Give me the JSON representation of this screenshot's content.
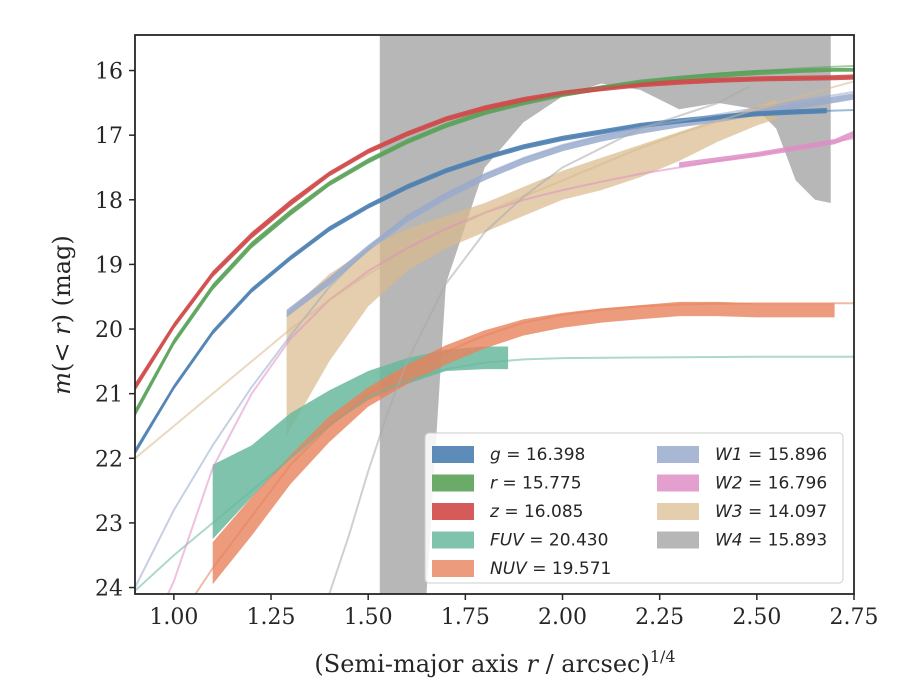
{
  "chart_data": {
    "type": "line",
    "xlabel_main": "(Semi-major axis ",
    "xlabel_var": "r",
    "xlabel_unit": " / arcsec)",
    "xlabel_exp": "1/4",
    "ylabel_m": "m",
    "ylabel_open": "(",
    "ylabel_cond": "< r",
    "ylabel_close": ")",
    "ylabel_unit": " (mag)",
    "xlim": [
      0.9,
      2.75
    ],
    "ylim": [
      24.1,
      15.45
    ],
    "xticks": [
      "1.00",
      "1.25",
      "1.50",
      "1.75",
      "2.00",
      "2.25",
      "2.50",
      "2.75"
    ],
    "yticks": [
      "16",
      "17",
      "18",
      "19",
      "20",
      "21",
      "22",
      "23",
      "24"
    ],
    "grid": false,
    "legend_position": "lower-right",
    "series": [
      {
        "name": "g",
        "value": "16.398",
        "color": "#4c7fb0",
        "fill_opacity": 0.9,
        "model": [
          [
            0.9,
            21.9
          ],
          [
            1.0,
            20.9
          ],
          [
            1.1,
            20.05
          ],
          [
            1.2,
            19.4
          ],
          [
            1.3,
            18.9
          ],
          [
            1.4,
            18.45
          ],
          [
            1.5,
            18.1
          ],
          [
            1.6,
            17.8
          ],
          [
            1.7,
            17.55
          ],
          [
            1.8,
            17.35
          ],
          [
            1.9,
            17.18
          ],
          [
            2.0,
            17.05
          ],
          [
            2.1,
            16.95
          ],
          [
            2.2,
            16.85
          ],
          [
            2.3,
            16.78
          ],
          [
            2.4,
            16.72
          ],
          [
            2.5,
            16.67
          ],
          [
            2.6,
            16.64
          ],
          [
            2.7,
            16.62
          ],
          [
            2.75,
            16.61
          ]
        ],
        "band_x": [
          0.9,
          1.0,
          1.1,
          1.2,
          1.3,
          1.4,
          1.5,
          1.6,
          1.7,
          1.8,
          1.9,
          2.0,
          2.1,
          2.2,
          2.3,
          2.4,
          2.5,
          2.6,
          2.68
        ],
        "band_upper": [
          21.85,
          20.86,
          20.01,
          19.36,
          18.86,
          18.41,
          18.06,
          17.76,
          17.51,
          17.31,
          17.14,
          17.01,
          16.91,
          16.81,
          16.74,
          16.68,
          16.63,
          16.6,
          16.58
        ],
        "band_lower": [
          21.95,
          20.94,
          20.09,
          19.44,
          18.94,
          18.49,
          18.14,
          17.84,
          17.59,
          17.39,
          17.22,
          17.09,
          16.99,
          16.89,
          16.82,
          16.76,
          16.71,
          16.68,
          16.66
        ]
      },
      {
        "name": "r",
        "value": "15.775",
        "color": "#5aa25a",
        "fill_opacity": 0.9,
        "model": [
          [
            0.9,
            21.3
          ],
          [
            1.0,
            20.2
          ],
          [
            1.1,
            19.35
          ],
          [
            1.2,
            18.7
          ],
          [
            1.3,
            18.2
          ],
          [
            1.4,
            17.75
          ],
          [
            1.5,
            17.4
          ],
          [
            1.6,
            17.1
          ],
          [
            1.7,
            16.85
          ],
          [
            1.8,
            16.65
          ],
          [
            1.9,
            16.5
          ],
          [
            2.0,
            16.37
          ],
          [
            2.1,
            16.27
          ],
          [
            2.2,
            16.18
          ],
          [
            2.3,
            16.11
          ],
          [
            2.4,
            16.05
          ],
          [
            2.5,
            16.01
          ],
          [
            2.6,
            15.97
          ],
          [
            2.7,
            15.94
          ],
          [
            2.75,
            15.93
          ]
        ],
        "band_x": [
          0.9,
          1.0,
          1.1,
          1.2,
          1.3,
          1.4,
          1.5,
          1.6,
          1.7,
          1.8,
          1.9,
          2.0,
          2.1,
          2.2,
          2.3,
          2.4,
          2.5,
          2.6,
          2.7,
          2.75
        ],
        "band_upper": [
          21.24,
          20.15,
          19.3,
          18.65,
          18.15,
          17.71,
          17.36,
          17.06,
          16.81,
          16.61,
          16.46,
          16.33,
          16.23,
          16.14,
          16.08,
          16.03,
          15.99,
          15.97,
          15.96,
          15.96
        ],
        "band_lower": [
          21.36,
          20.25,
          19.4,
          18.75,
          18.25,
          17.79,
          17.44,
          17.14,
          16.89,
          16.69,
          16.54,
          16.41,
          16.31,
          16.22,
          16.16,
          16.11,
          16.07,
          16.04,
          16.02,
          16.02
        ]
      },
      {
        "name": "z",
        "value": "16.085",
        "color": "#d04848",
        "fill_opacity": 0.9,
        "model": [
          [
            0.9,
            20.9
          ],
          [
            1.0,
            19.95
          ],
          [
            1.1,
            19.15
          ],
          [
            1.2,
            18.55
          ],
          [
            1.3,
            18.05
          ],
          [
            1.4,
            17.6
          ],
          [
            1.5,
            17.25
          ],
          [
            1.6,
            16.98
          ],
          [
            1.7,
            16.75
          ],
          [
            1.8,
            16.58
          ],
          [
            1.9,
            16.45
          ],
          [
            2.0,
            16.35
          ],
          [
            2.1,
            16.28
          ],
          [
            2.2,
            16.22
          ],
          [
            2.3,
            16.18
          ],
          [
            2.4,
            16.15
          ],
          [
            2.5,
            16.13
          ],
          [
            2.6,
            16.12
          ],
          [
            2.7,
            16.11
          ],
          [
            2.75,
            16.1
          ]
        ],
        "band_x": [
          0.9,
          1.0,
          1.1,
          1.2,
          1.3,
          1.4,
          1.5,
          1.6,
          1.7,
          1.8,
          1.9,
          2.0,
          2.1,
          2.2,
          2.3,
          2.4,
          2.5,
          2.6,
          2.7,
          2.75
        ],
        "band_upper": [
          20.84,
          19.9,
          19.1,
          18.5,
          18.0,
          17.56,
          17.21,
          16.94,
          16.71,
          16.54,
          16.41,
          16.31,
          16.24,
          16.18,
          16.14,
          16.11,
          16.09,
          16.08,
          16.07,
          16.06
        ],
        "band_lower": [
          20.96,
          20.0,
          19.2,
          18.6,
          18.1,
          17.64,
          17.29,
          17.02,
          16.79,
          16.62,
          16.49,
          16.39,
          16.32,
          16.26,
          16.22,
          16.19,
          16.17,
          16.16,
          16.15,
          16.14
        ]
      },
      {
        "name": "FUV",
        "value": "20.430",
        "color": "#6ab89e",
        "fill_opacity": 0.85,
        "model": [
          [
            0.9,
            24.05
          ],
          [
            1.0,
            23.5
          ],
          [
            1.1,
            23.0
          ],
          [
            1.2,
            22.5
          ],
          [
            1.3,
            22.0
          ],
          [
            1.4,
            21.5
          ],
          [
            1.5,
            21.05
          ],
          [
            1.6,
            20.8
          ],
          [
            1.7,
            20.62
          ],
          [
            1.8,
            20.52
          ],
          [
            1.9,
            20.47
          ],
          [
            2.0,
            20.45
          ],
          [
            2.2,
            20.44
          ],
          [
            2.5,
            20.43
          ],
          [
            2.75,
            20.43
          ]
        ],
        "band_x": [
          1.1,
          1.2,
          1.3,
          1.4,
          1.5,
          1.6,
          1.7,
          1.8,
          1.86
        ],
        "band_upper": [
          22.1,
          21.8,
          21.3,
          20.95,
          20.65,
          20.45,
          20.32,
          20.27,
          20.27
        ],
        "band_lower": [
          23.25,
          22.6,
          22.0,
          21.5,
          21.1,
          20.85,
          20.65,
          20.62,
          20.62
        ]
      },
      {
        "name": "NUV",
        "value": "19.571",
        "color": "#e8825c",
        "fill_opacity": 0.8,
        "model": [
          [
            0.9,
            25.5
          ],
          [
            1.0,
            24.6
          ],
          [
            1.1,
            23.7
          ],
          [
            1.2,
            22.9
          ],
          [
            1.3,
            22.1
          ],
          [
            1.4,
            21.5
          ],
          [
            1.5,
            21.0
          ],
          [
            1.6,
            20.65
          ],
          [
            1.7,
            20.35
          ],
          [
            1.8,
            20.1
          ],
          [
            1.9,
            19.9
          ],
          [
            2.0,
            19.78
          ],
          [
            2.1,
            19.7
          ],
          [
            2.2,
            19.65
          ],
          [
            2.3,
            19.62
          ],
          [
            2.4,
            19.61
          ],
          [
            2.5,
            19.6
          ],
          [
            2.75,
            19.6
          ]
        ],
        "band_x": [
          1.1,
          1.2,
          1.3,
          1.4,
          1.5,
          1.6,
          1.7,
          1.8,
          1.9,
          2.0,
          2.1,
          2.2,
          2.3,
          2.4,
          2.5,
          2.6,
          2.7
        ],
        "band_upper": [
          23.3,
          22.6,
          21.95,
          21.35,
          20.9,
          20.55,
          20.25,
          20.02,
          19.85,
          19.75,
          19.68,
          19.63,
          19.58,
          19.58,
          19.6,
          19.6,
          19.6
        ],
        "band_lower": [
          23.95,
          23.2,
          22.4,
          21.75,
          21.2,
          20.85,
          20.55,
          20.3,
          20.1,
          19.98,
          19.9,
          19.85,
          19.8,
          19.8,
          19.82,
          19.82,
          19.82
        ]
      },
      {
        "name": "W1",
        "value": "15.896",
        "color": "#99aacc",
        "fill_opacity": 0.85,
        "model": [
          [
            0.9,
            24.0
          ],
          [
            1.0,
            22.8
          ],
          [
            1.1,
            21.8
          ],
          [
            1.2,
            20.9
          ],
          [
            1.3,
            20.1
          ],
          [
            1.4,
            19.35
          ],
          [
            1.5,
            18.75
          ],
          [
            1.6,
            18.25
          ],
          [
            1.7,
            17.9
          ],
          [
            1.8,
            17.6
          ],
          [
            1.9,
            17.35
          ],
          [
            2.0,
            17.15
          ],
          [
            2.1,
            17.0
          ],
          [
            2.2,
            16.88
          ],
          [
            2.3,
            16.78
          ],
          [
            2.4,
            16.68
          ],
          [
            2.5,
            16.58
          ],
          [
            2.6,
            16.48
          ],
          [
            2.7,
            16.38
          ],
          [
            2.75,
            16.33
          ]
        ],
        "band_x": [
          1.29,
          1.4,
          1.5,
          1.6,
          1.7,
          1.8,
          1.9,
          2.0,
          2.1,
          2.2,
          2.3,
          2.4,
          2.5,
          2.6,
          2.7,
          2.75
        ],
        "band_upper": [
          19.7,
          19.2,
          18.7,
          18.25,
          17.9,
          17.6,
          17.35,
          17.15,
          17.0,
          16.88,
          16.78,
          16.7,
          16.6,
          16.5,
          16.4,
          16.35
        ],
        "band_lower": [
          19.82,
          19.32,
          18.8,
          18.35,
          18.0,
          17.7,
          17.45,
          17.25,
          17.1,
          16.98,
          16.88,
          16.8,
          16.7,
          16.6,
          16.5,
          16.45
        ]
      },
      {
        "name": "W2",
        "value": "16.796",
        "color": "#de8ec6",
        "fill_opacity": 0.85,
        "model": [
          [
            0.9,
            25.2
          ],
          [
            1.0,
            23.9
          ],
          [
            1.1,
            22.15
          ],
          [
            1.2,
            21.0
          ],
          [
            1.3,
            20.15
          ],
          [
            1.4,
            19.55
          ],
          [
            1.5,
            19.1
          ],
          [
            1.6,
            18.75
          ],
          [
            1.7,
            18.45
          ],
          [
            1.8,
            18.2
          ],
          [
            1.9,
            18.0
          ],
          [
            2.0,
            17.85
          ],
          [
            2.1,
            17.72
          ],
          [
            2.2,
            17.6
          ],
          [
            2.3,
            17.5
          ],
          [
            2.4,
            17.4
          ],
          [
            2.5,
            17.3
          ],
          [
            2.6,
            17.2
          ],
          [
            2.7,
            17.1
          ],
          [
            2.75,
            17.05
          ]
        ],
        "band_x": [
          2.3,
          2.4,
          2.5,
          2.6,
          2.7,
          2.75
        ],
        "band_upper": [
          17.42,
          17.34,
          17.26,
          17.16,
          17.06,
          16.93
        ],
        "band_lower": [
          17.5,
          17.42,
          17.34,
          17.24,
          17.14,
          17.03
        ]
      },
      {
        "name": "W3",
        "value": "14.097",
        "color": "#d9b98a",
        "fill_opacity": 0.7,
        "model": [
          [
            0.9,
            22.0
          ],
          [
            1.0,
            21.5
          ],
          [
            1.1,
            21.0
          ],
          [
            1.2,
            20.5
          ],
          [
            1.3,
            20.0
          ],
          [
            1.4,
            19.55
          ],
          [
            1.5,
            19.15
          ],
          [
            1.6,
            18.8
          ],
          [
            1.7,
            18.5
          ],
          [
            1.8,
            18.2
          ],
          [
            1.9,
            17.95
          ],
          [
            2.0,
            17.7
          ],
          [
            2.1,
            17.45
          ],
          [
            2.2,
            17.2
          ],
          [
            2.3,
            16.98
          ],
          [
            2.4,
            16.78
          ],
          [
            2.5,
            16.6
          ],
          [
            2.6,
            16.42
          ],
          [
            2.7,
            16.25
          ],
          [
            2.75,
            16.17
          ]
        ],
        "band_x": [
          1.29,
          1.4,
          1.5,
          1.6,
          1.7,
          1.8,
          1.9,
          2.0,
          2.1,
          2.2,
          2.3,
          2.4,
          2.5,
          2.55
        ],
        "band_upper": [
          19.75,
          19.15,
          18.75,
          18.45,
          18.25,
          18.05,
          17.8,
          17.55,
          17.35,
          17.15,
          16.95,
          16.75,
          16.55,
          16.45
        ],
        "band_lower": [
          21.65,
          20.5,
          19.65,
          19.1,
          18.75,
          18.5,
          18.25,
          18.0,
          17.85,
          17.65,
          17.4,
          17.1,
          16.85,
          16.75
        ]
      },
      {
        "name": "W4",
        "value": "15.893",
        "color": "#aaaaaa",
        "fill_opacity": 0.85,
        "model": [
          [
            1.4,
            24.1
          ],
          [
            1.45,
            23.2
          ],
          [
            1.5,
            22.2
          ],
          [
            1.55,
            21.3
          ],
          [
            1.6,
            20.5
          ],
          [
            1.7,
            19.3
          ],
          [
            1.8,
            18.5
          ],
          [
            1.9,
            17.95
          ],
          [
            2.0,
            17.5
          ],
          [
            2.2,
            16.9
          ],
          [
            2.4,
            16.5
          ],
          [
            2.48,
            16.25
          ]
        ],
        "band_x": [
          1.53,
          1.6,
          1.65,
          1.7,
          1.8,
          1.9,
          2.0,
          2.1,
          2.2,
          2.3,
          2.4,
          2.5,
          2.55,
          2.6,
          2.65,
          2.69
        ],
        "band_upper": [
          15.45,
          15.45,
          15.45,
          15.45,
          15.45,
          15.45,
          15.45,
          15.45,
          15.45,
          15.45,
          15.45,
          15.45,
          15.45,
          15.45,
          15.45,
          15.45
        ],
        "band_lower": [
          24.1,
          24.1,
          24.1,
          19.3,
          17.5,
          16.8,
          16.4,
          16.2,
          16.3,
          16.6,
          16.5,
          16.6,
          16.9,
          17.7,
          18.0,
          18.05
        ]
      }
    ]
  }
}
